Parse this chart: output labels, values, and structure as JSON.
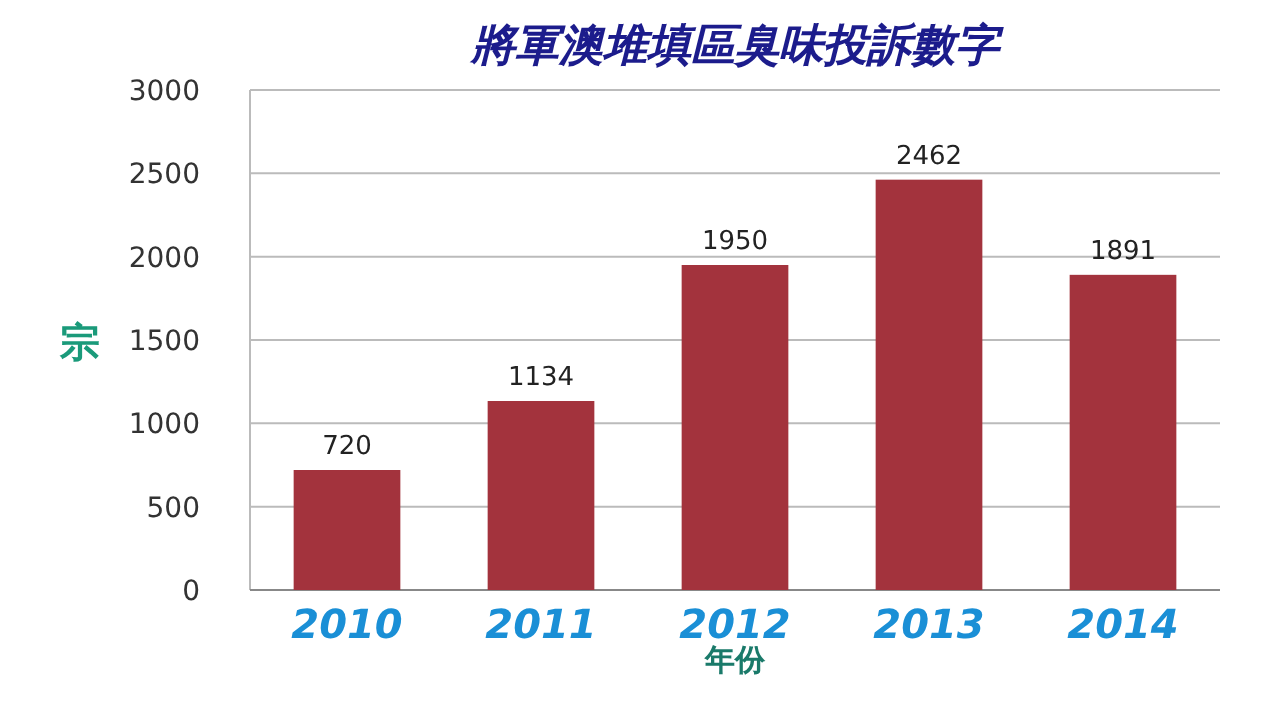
{
  "chart_data": {
    "type": "bar",
    "title": "將軍澳堆填區臭味投訴數字",
    "xlabel": "年份",
    "ylabel": "宗",
    "categories": [
      "2010",
      "2011",
      "2012",
      "2013",
      "2014"
    ],
    "values": [
      720,
      1134,
      1950,
      2462,
      1891
    ],
    "color": "#a3333d",
    "ylim": [
      0,
      3000
    ],
    "yticks": [
      0,
      500,
      1000,
      1500,
      2000,
      2500,
      3000
    ],
    "grid": "y",
    "data_labels": true
  }
}
